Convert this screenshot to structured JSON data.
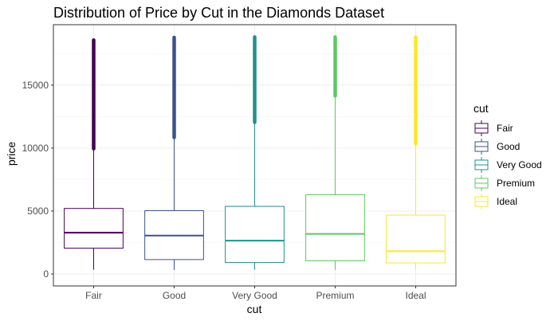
{
  "chart_data": {
    "type": "boxplot",
    "title": "Distribution of Price by Cut in the Diamonds Dataset",
    "xlabel": "cut",
    "ylabel": "price",
    "categories": [
      "Fair",
      "Good",
      "Very Good",
      "Premium",
      "Ideal"
    ],
    "ylim": [
      -950,
      19800
    ],
    "yticks": [
      0,
      5000,
      10000,
      15000
    ],
    "grid": true,
    "legend": {
      "title": "cut",
      "position": "right",
      "entries": [
        "Fair",
        "Good",
        "Very Good",
        "Premium",
        "Ideal"
      ]
    },
    "colors": [
      "#440154",
      "#3b528b",
      "#21908c",
      "#5dc863",
      "#fde725"
    ],
    "boxes": [
      {
        "name": "Fair",
        "min": 337,
        "q1": 2050,
        "median": 3282,
        "q3": 5206,
        "whisker_high": 9950,
        "outlier_start": 9950,
        "max": 18574
      },
      {
        "name": "Good",
        "min": 327,
        "q1": 1145,
        "median": 3051,
        "q3": 5028,
        "whisker_high": 10850,
        "outlier_start": 10850,
        "max": 18788
      },
      {
        "name": "Very Good",
        "min": 336,
        "q1": 912,
        "median": 2648,
        "q3": 5373,
        "whisker_high": 12050,
        "outlier_start": 12050,
        "max": 18818
      },
      {
        "name": "Premium",
        "min": 326,
        "q1": 1046,
        "median": 3185,
        "q3": 6296,
        "whisker_high": 14150,
        "outlier_start": 14150,
        "max": 18823
      },
      {
        "name": "Ideal",
        "min": 326,
        "q1": 878,
        "median": 1810,
        "q3": 4678,
        "whisker_high": 10350,
        "outlier_start": 10350,
        "max": 18806
      }
    ]
  }
}
